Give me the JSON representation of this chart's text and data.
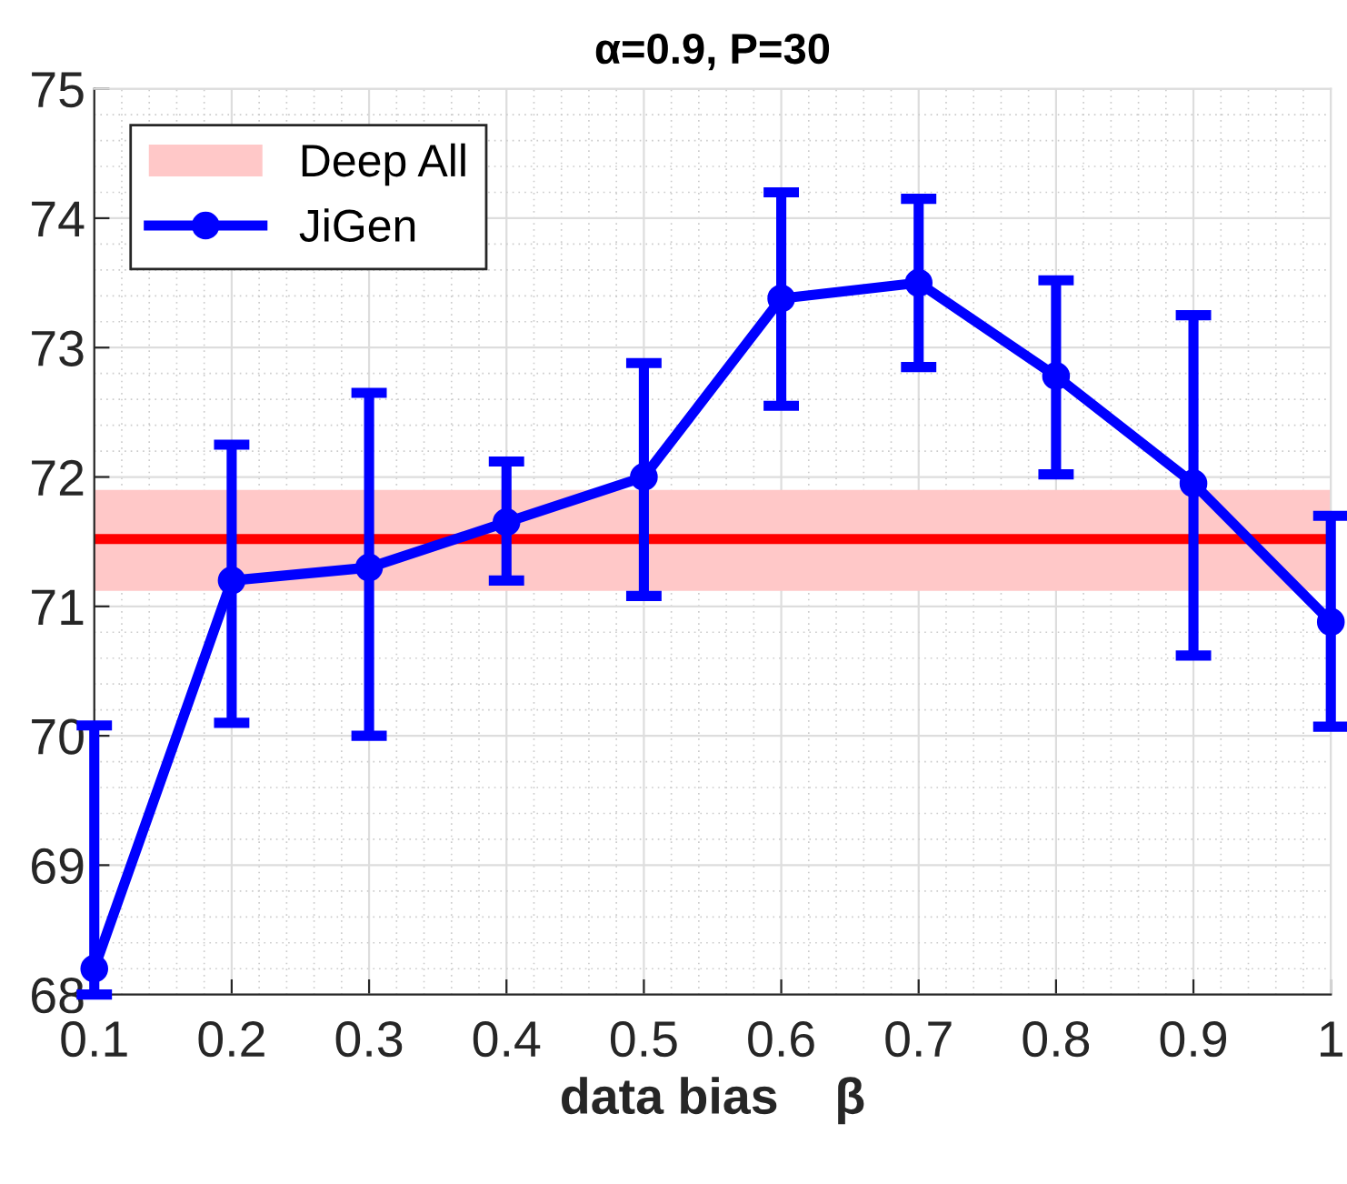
{
  "chart_data": {
    "type": "line",
    "title": "α=0.9, P=30",
    "xlabel": "data bias    β",
    "x": [
      0.1,
      0.2,
      0.3,
      0.4,
      0.5,
      0.6,
      0.7,
      0.8,
      0.9,
      1
    ],
    "series": [
      {
        "name": "JiGen",
        "color": "#0000ff",
        "values": [
          68.2,
          71.2,
          71.3,
          71.65,
          72.0,
          73.38,
          73.5,
          72.78,
          71.95,
          70.88
        ],
        "errors": [
          [
            68.0,
            70.08
          ],
          [
            70.1,
            72.25
          ],
          [
            70.0,
            72.65
          ],
          [
            71.2,
            72.12
          ],
          [
            71.08,
            72.88
          ],
          [
            72.55,
            74.2
          ],
          [
            72.85,
            74.15
          ],
          [
            72.02,
            73.52
          ],
          [
            70.62,
            73.25
          ],
          [
            70.07,
            71.7
          ]
        ]
      }
    ],
    "bands": [
      {
        "axis": "y",
        "from": 71.12,
        "to": 71.9,
        "label": "Deep All",
        "color": "#ffc8c8"
      }
    ],
    "ref_lines": [
      {
        "axis": "y",
        "value": 71.52,
        "color": "#ff0000",
        "line_style": "solid"
      }
    ],
    "xlim": [
      0.1,
      1
    ],
    "xticks": [
      0.1,
      0.2,
      0.3,
      0.4,
      0.5,
      0.6,
      0.7,
      0.8,
      0.9,
      1
    ],
    "ylim": [
      68,
      75
    ],
    "yticks": [
      68,
      69,
      70,
      71,
      72,
      73,
      74,
      75
    ],
    "grid": true,
    "legend": "top left",
    "marker": "circle",
    "line_style": "solid"
  }
}
